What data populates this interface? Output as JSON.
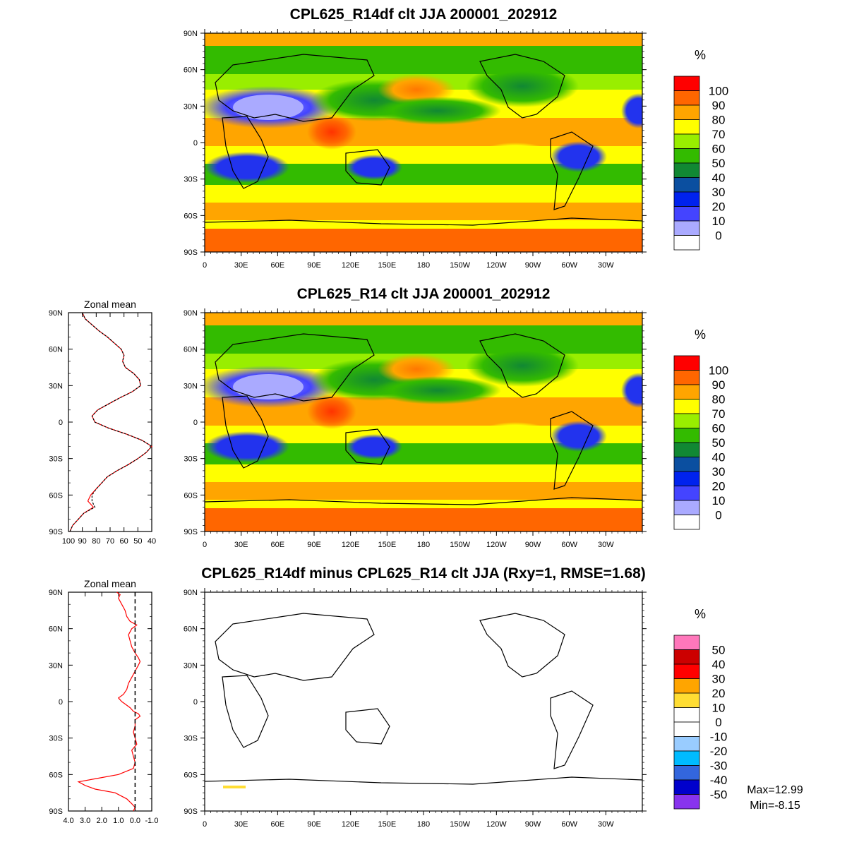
{
  "figure": {
    "stats": {
      "max": "Max=12.99",
      "min": "Min=-8.15"
    }
  },
  "chart_data": [
    {
      "type": "heatmap",
      "title": "CPL625_R14df clt JJA 200001_202912",
      "x_ticks": [
        "0",
        "30E",
        "60E",
        "90E",
        "120E",
        "150E",
        "180",
        "150W",
        "120W",
        "90W",
        "60W",
        "30W"
      ],
      "y_ticks": [
        "90N",
        "60N",
        "30N",
        "0",
        "30S",
        "60S",
        "90S"
      ],
      "xlim": [
        0,
        360
      ],
      "ylim": [
        -90,
        90
      ],
      "colorbar": {
        "unit": "%",
        "levels": [
          "100",
          "90",
          "80",
          "70",
          "60",
          "50",
          "40",
          "30",
          "20",
          "10",
          "0"
        ],
        "colors": [
          "#ff0000",
          "#ff6600",
          "#ffa500",
          "#ffff00",
          "#99ee00",
          "#33bb00",
          "#118833",
          "#0b4fa0",
          "#0022ee",
          "#4444ff",
          "#aaaaff",
          "#ffffff"
        ]
      }
    },
    {
      "type": "heatmap",
      "title": "CPL625_R14 clt JJA 200001_202912",
      "x_ticks": [
        "0",
        "30E",
        "60E",
        "90E",
        "120E",
        "150E",
        "180",
        "150W",
        "120W",
        "90W",
        "60W",
        "30W"
      ],
      "y_ticks": [
        "90N",
        "60N",
        "30N",
        "0",
        "30S",
        "60S",
        "90S"
      ],
      "xlim": [
        0,
        360
      ],
      "ylim": [
        -90,
        90
      ],
      "colorbar": {
        "unit": "%",
        "levels": [
          "100",
          "90",
          "80",
          "70",
          "60",
          "50",
          "40",
          "30",
          "20",
          "10",
          "0"
        ],
        "colors": [
          "#ff0000",
          "#ff6600",
          "#ffa500",
          "#ffff00",
          "#99ee00",
          "#33bb00",
          "#118833",
          "#0b4fa0",
          "#0022ee",
          "#4444ff",
          "#aaaaff",
          "#ffffff"
        ]
      }
    },
    {
      "type": "line",
      "title": "Zonal mean",
      "x_ticks": [
        "100",
        "90",
        "80",
        "70",
        "60",
        "50",
        "40"
      ],
      "y_ticks": [
        "90N",
        "60N",
        "30N",
        "0",
        "30S",
        "60S",
        "90S"
      ],
      "xlim": [
        100,
        40
      ],
      "ylim": [
        -90,
        90
      ],
      "series": [
        {
          "color": "#ff0000",
          "lat": [
            -90,
            -85,
            -80,
            -75,
            -70,
            -65,
            -60,
            -55,
            -50,
            -45,
            -40,
            -35,
            -30,
            -25,
            -20,
            -15,
            -10,
            -5,
            0,
            5,
            10,
            15,
            20,
            25,
            30,
            35,
            40,
            45,
            50,
            55,
            60,
            65,
            70,
            75,
            80,
            85,
            90
          ],
          "values": [
            99,
            97,
            93,
            89,
            82,
            86,
            84,
            80,
            76,
            72,
            65,
            57,
            50,
            44,
            40,
            47,
            58,
            71,
            81,
            83,
            79,
            71,
            63,
            54,
            48,
            49,
            53,
            59,
            61,
            60,
            62,
            67,
            72,
            78,
            83,
            88,
            90
          ]
        },
        {
          "color": "#000000",
          "lat": [
            -90,
            -85,
            -80,
            -75,
            -70,
            -65,
            -60,
            -55,
            -50,
            -45,
            -40,
            -35,
            -30,
            -25,
            -20,
            -15,
            -10,
            -5,
            0,
            5,
            10,
            15,
            20,
            25,
            30,
            35,
            40,
            45,
            50,
            55,
            60,
            65,
            70,
            75,
            80,
            85,
            90
          ],
          "values": [
            99,
            97,
            93,
            89,
            81,
            83,
            83,
            80,
            76,
            72,
            65,
            57,
            50,
            44,
            40,
            47,
            58,
            71,
            81,
            83,
            79,
            71,
            63,
            54,
            48,
            49,
            53,
            59,
            61,
            60,
            62,
            67,
            72,
            78,
            83,
            88,
            90
          ]
        }
      ]
    },
    {
      "type": "heatmap",
      "title": "CPL625_R14df minus CPL625_R14 clt JJA (Rxy=1, RMSE=1.68)",
      "x_ticks": [
        "0",
        "30E",
        "60E",
        "90E",
        "120E",
        "150E",
        "180",
        "150W",
        "120W",
        "90W",
        "60W",
        "30W"
      ],
      "y_ticks": [
        "90N",
        "60N",
        "30N",
        "0",
        "30S",
        "60S",
        "90S"
      ],
      "xlim": [
        0,
        360
      ],
      "ylim": [
        -90,
        90
      ],
      "colorbar": {
        "unit": "%",
        "levels": [
          "50",
          "40",
          "30",
          "20",
          "10",
          "0",
          "-10",
          "-20",
          "-30",
          "-40",
          "-50"
        ],
        "colors": [
          "#ff77bb",
          "#cc0000",
          "#ff0000",
          "#ffa500",
          "#ffdd33",
          "#ffffff",
          "#ffffff",
          "#99ccff",
          "#00bbff",
          "#3366dd",
          "#0000cc",
          "#8833ee"
        ]
      }
    },
    {
      "type": "line",
      "title": "Zonal mean",
      "x_ticks": [
        "4.0",
        "3.0",
        "2.0",
        "1.0",
        "0.0",
        "-1.0"
      ],
      "y_ticks": [
        "90N",
        "60N",
        "30N",
        "0",
        "30S",
        "60S",
        "90S"
      ],
      "xlim": [
        4,
        -1
      ],
      "ylim": [
        -90,
        90
      ],
      "series": [
        {
          "color": "#ff0000",
          "lat": [
            -90,
            -87,
            -84,
            -80,
            -75,
            -72,
            -69,
            -66,
            -63,
            -60,
            -55,
            -50,
            -45,
            -40,
            -35,
            -30,
            -25,
            -20,
            -15,
            -12,
            -10,
            -8,
            -5,
            -2,
            0,
            3,
            6,
            10,
            15,
            20,
            25,
            30,
            33,
            36,
            40,
            45,
            50,
            55,
            60,
            63,
            66,
            70,
            75,
            80,
            85,
            88,
            90
          ],
          "values": [
            0.1,
            0.0,
            0.2,
            0.5,
            1.2,
            2.4,
            3.0,
            3.4,
            2.2,
            1.0,
            0.1,
            0.0,
            0.1,
            0.2,
            -0.1,
            0.0,
            0.1,
            0.0,
            0.0,
            -0.3,
            -0.2,
            0.1,
            0.3,
            0.6,
            0.8,
            1.0,
            0.7,
            0.5,
            0.4,
            0.2,
            0.0,
            -0.2,
            -0.3,
            -0.2,
            0.0,
            0.2,
            0.3,
            0.4,
            0.2,
            -0.1,
            0.3,
            0.5,
            0.6,
            0.8,
            1.0,
            0.9,
            1.1
          ]
        }
      ]
    }
  ]
}
